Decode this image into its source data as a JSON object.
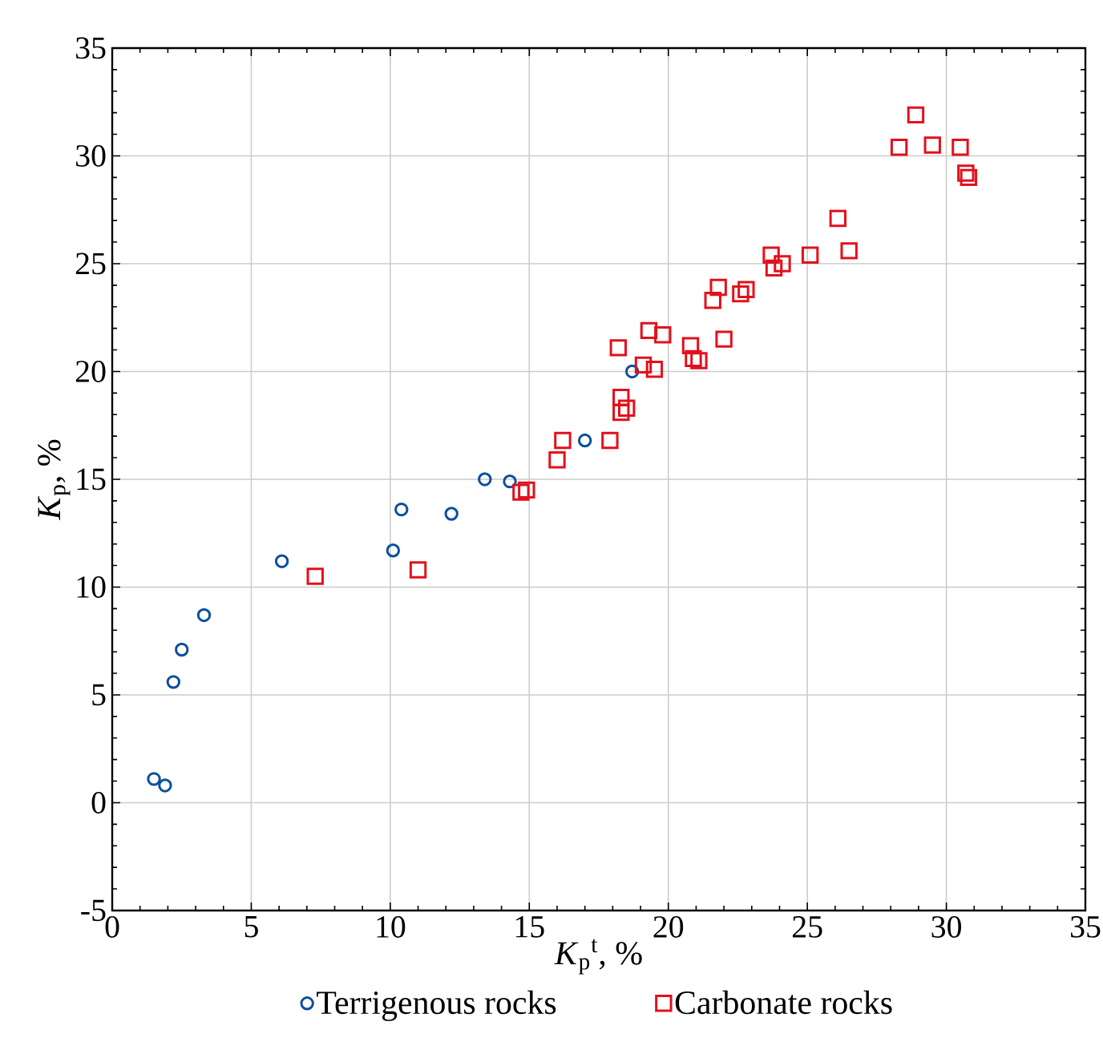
{
  "chart_data": {
    "type": "scatter",
    "xlabel": "*K*$_{p}$$^{t}$, %",
    "ylabel": "*K*$_{p}$, %",
    "xlim": [
      0,
      35
    ],
    "ylim": [
      -5,
      35
    ],
    "xticks": [
      0,
      5,
      10,
      15,
      20,
      25,
      30,
      35
    ],
    "yticks": [
      -5,
      0,
      5,
      10,
      15,
      20,
      25,
      30,
      35
    ],
    "grid": true,
    "legend": "bottom",
    "series": [
      {
        "name": "Terrigenous rocks",
        "color": "#0a4f9e",
        "marker": "circle",
        "x": [
          1.5,
          1.9,
          2.2,
          2.5,
          3.3,
          6.1,
          10.1,
          10.4,
          12.2,
          13.4,
          14.3,
          17.0,
          18.7
        ],
        "values": [
          1.1,
          0.8,
          5.6,
          7.1,
          8.7,
          11.2,
          11.7,
          13.6,
          13.4,
          15.0,
          14.9,
          16.8,
          20.0
        ]
      },
      {
        "name": "Carbonate rocks",
        "color": "#e3101c",
        "marker": "square",
        "x": [
          7.3,
          11.0,
          14.7,
          14.9,
          16.0,
          16.2,
          17.9,
          18.3,
          18.5,
          18.3,
          18.2,
          19.1,
          19.5,
          19.3,
          19.8,
          20.8,
          20.9,
          21.1,
          22.0,
          21.6,
          21.8,
          22.6,
          22.8,
          23.7,
          23.8,
          24.1,
          25.1,
          26.1,
          26.5,
          28.3,
          28.9,
          29.5,
          30.5,
          30.7,
          30.8
        ],
        "values": [
          10.5,
          10.8,
          14.4,
          14.5,
          15.9,
          16.8,
          16.8,
          18.8,
          18.3,
          18.1,
          21.1,
          20.3,
          20.1,
          21.9,
          21.7,
          21.2,
          20.6,
          20.5,
          21.5,
          23.3,
          23.9,
          23.6,
          23.8,
          25.4,
          24.8,
          25.0,
          25.4,
          27.1,
          25.6,
          30.4,
          31.9,
          30.5,
          30.4,
          29.2,
          29.0
        ]
      }
    ]
  }
}
